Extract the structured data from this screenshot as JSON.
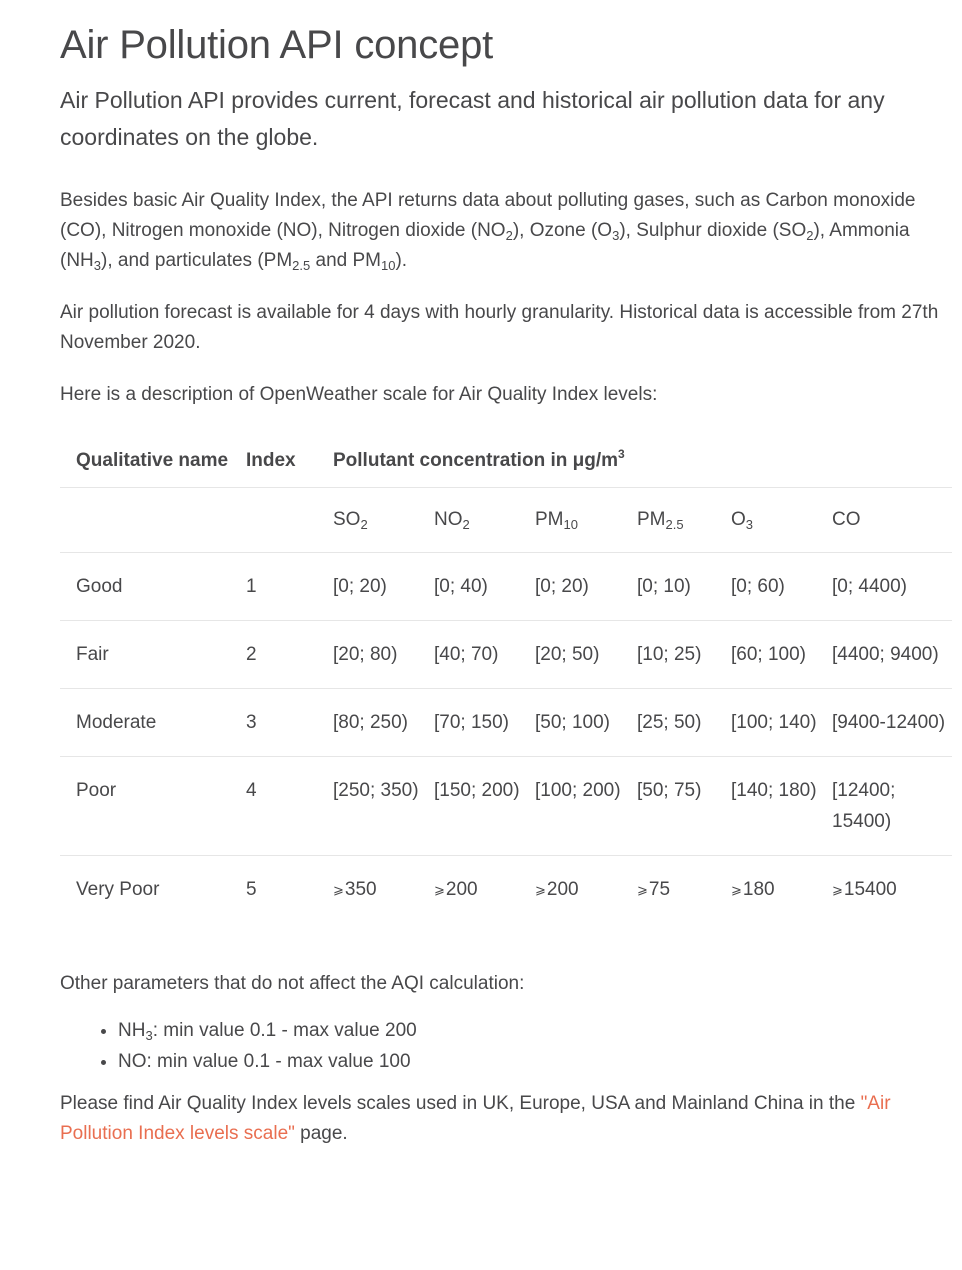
{
  "title": "Air Pollution API concept",
  "lead": "Air Pollution API provides current, forecast and historical air pollution data for any coordinates on the globe.",
  "p1": {
    "t1": "Besides basic Air Quality Index, the API returns data about polluting gases, such as Carbon monoxide (CO), Nitrogen monoxide (NO), Nitrogen dioxide (NO",
    "t2": "), Ozone (O",
    "t3": "), Sulphur dioxide (SO",
    "t4": "), Ammonia (NH",
    "t5": "), and particulates (PM",
    "t6": " and PM",
    "t7": ").",
    "s2": "2",
    "s3": "3",
    "s25": "2.5",
    "s10": "10"
  },
  "p2": "Air pollution forecast is available for 4 days with hourly granularity. Historical data is accessible from 27th November 2020.",
  "p3": "Here is a description of OpenWeather scale for Air Quality Index levels:",
  "table": {
    "headers": {
      "name": "Qualitative name",
      "index": "Index",
      "pollutant": "Pollutant concentration in μg/m",
      "pollutant_sup": "3"
    },
    "pollutants": {
      "so2": "SO",
      "so2_sub": "2",
      "no2": "NO",
      "no2_sub": "2",
      "pm10": "PM",
      "pm10_sub": "10",
      "pm25": "PM",
      "pm25_sub": "2.5",
      "o3": "O",
      "o3_sub": "3",
      "co": "CO"
    },
    "rows": [
      {
        "name": "Good",
        "index": "1",
        "so2": "[0; 20)",
        "no2": "[0; 40)",
        "pm10": "[0; 20)",
        "pm25": "[0; 10)",
        "o3": "[0; 60)",
        "co": "[0; 4400)"
      },
      {
        "name": "Fair",
        "index": "2",
        "so2": "[20; 80)",
        "no2": "[40; 70)",
        "pm10": "[20; 50)",
        "pm25": "[10; 25)",
        "o3": "[60; 100)",
        "co": "[4400; 9400)"
      },
      {
        "name": "Moderate",
        "index": "3",
        "so2": "[80; 250)",
        "no2": "[70; 150)",
        "pm10": "[50; 100)",
        "pm25": "[25; 50)",
        "o3": "[100; 140)",
        "co": "[9400-12400)"
      },
      {
        "name": "Poor",
        "index": "4",
        "so2": "[250; 350)",
        "no2": "[150; 200)",
        "pm10": "[100; 200)",
        "pm25": "[50; 75)",
        "o3": "[140; 180)",
        "co": "[12400; 15400)"
      },
      {
        "name": "Very Poor",
        "index": "5",
        "ge": "⩾",
        "so2": "350",
        "no2": "200",
        "pm10": "200",
        "pm25": "75",
        "o3": "180",
        "co": "15400"
      }
    ]
  },
  "other_intro": "Other parameters that do not affect the AQI calculation:",
  "other_items": [
    {
      "label": "NH",
      "sub": "3",
      "text": ": min value 0.1 - max value 200"
    },
    {
      "label": "NO",
      "sub": "",
      "text": ": min value 0.1 - max value 100"
    }
  ],
  "closing": {
    "before": "Please find Air Quality Index levels scales used in UK, Europe, USA and Mainland China in the ",
    "link": "\"Air Pollution Index levels scale\"",
    "after": " page."
  },
  "colors": {
    "text": "#48484a",
    "link": "#e96e50",
    "rule": "#e6e6e6"
  }
}
